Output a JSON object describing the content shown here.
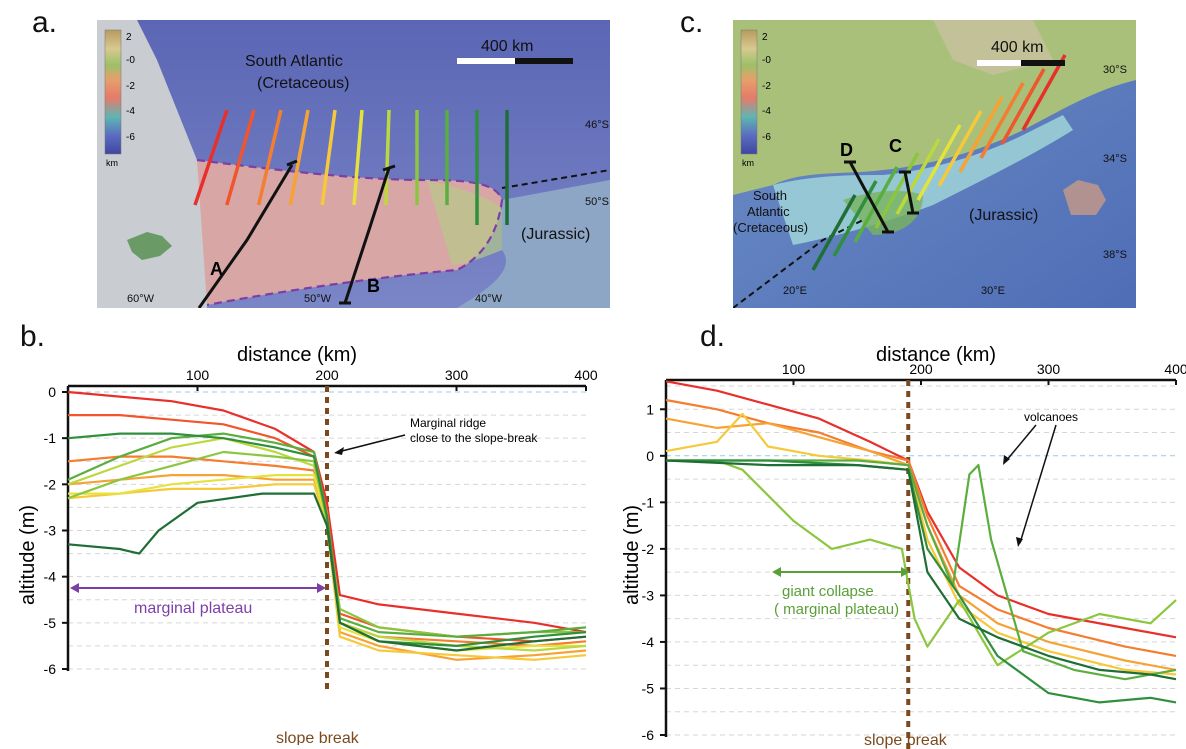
{
  "panels": {
    "a": {
      "letter": "a.",
      "ocean_label_line1": "South Atlantic",
      "ocean_label_line2": "(Cretaceous)",
      "jurassic_label": "(Jurassic)",
      "scale_label": "400 km",
      "lat_labels": [
        "46°S",
        "50°S"
      ],
      "lon_labels": [
        "60°W",
        "50°W",
        "40°W"
      ],
      "legend_ticks": [
        "2",
        "-0",
        "-2",
        "-4",
        "-6"
      ],
      "legend_unit": "km",
      "profile_labels": [
        "A",
        "B"
      ]
    },
    "b": {
      "letter": "b.",
      "x_title": "distance (km)",
      "y_title": "altitude (m)",
      "annotation_ridge_line1": "Marginal ridge",
      "annotation_ridge_line2": "close to the slope-break",
      "annotation_plateau": "marginal plateau",
      "annotation_slope": "slope break"
    },
    "c": {
      "letter": "c.",
      "ocean_label_line1": "South",
      "ocean_label_line2": "Atlantic",
      "ocean_label_line3": "(Cretaceous)",
      "jurassic_label": "(Jurassic)",
      "scale_label": "400 km",
      "lat_labels": [
        "30°S",
        "34°S",
        "38°S"
      ],
      "lon_labels": [
        "20°E",
        "30°E"
      ],
      "legend_ticks": [
        "2",
        "-0",
        "-2",
        "-4",
        "-6"
      ],
      "legend_unit": "km",
      "profile_labels": [
        "C",
        "D"
      ]
    },
    "d": {
      "letter": "d.",
      "x_title": "distance (km)",
      "y_title": "altitude (m)",
      "annotation_volcanoes": "volcanoes",
      "annotation_collapse_line1": "giant collapse",
      "annotation_collapse_line2": "( marginal plateau)",
      "annotation_slope": "slope break"
    }
  },
  "colors": {
    "profile_gradient": [
      "#e8302a",
      "#f0552b",
      "#f47d2f",
      "#f6a235",
      "#f6c83a",
      "#e5e23e",
      "#bcd83f",
      "#8cc63f",
      "#5aae3f",
      "#2f8f3d",
      "#1f6e36"
    ],
    "plateau_outline": "#7b3fa6",
    "slope_break": "#7a4a1e",
    "plateau_arrow": "#7b3fa6",
    "collapse_arrow": "#5aa03a"
  },
  "chart_data": [
    {
      "type": "line",
      "panel": "b",
      "title": "",
      "xlabel": "distance (km)",
      "ylabel": "altitude (m)",
      "xlim": [
        0,
        400
      ],
      "ylim": [
        -6,
        0
      ],
      "x_ticks": [
        100,
        200,
        300,
        400
      ],
      "y_ticks": [
        0,
        -1,
        -2,
        -3,
        -4,
        -5,
        -6
      ],
      "slope_break_x": 200,
      "series": [
        {
          "color": "#e8302a",
          "x": [
            0,
            40,
            80,
            120,
            160,
            190,
            200,
            210,
            240,
            300,
            360,
            400
          ],
          "y": [
            0,
            -0.1,
            -0.2,
            -0.4,
            -0.8,
            -1.3,
            -2.4,
            -4.4,
            -4.6,
            -4.8,
            -5.0,
            -5.2
          ]
        },
        {
          "color": "#f0552b",
          "x": [
            0,
            40,
            80,
            120,
            160,
            190,
            200,
            210,
            240,
            300,
            360,
            400
          ],
          "y": [
            -0.5,
            -0.5,
            -0.6,
            -0.7,
            -1.0,
            -1.4,
            -2.6,
            -4.8,
            -5.1,
            -5.3,
            -5.4,
            -5.3
          ]
        },
        {
          "color": "#f47d2f",
          "x": [
            0,
            40,
            80,
            120,
            160,
            190,
            200,
            210,
            240,
            300,
            360,
            400
          ],
          "y": [
            -1.5,
            -1.4,
            -1.4,
            -1.5,
            -1.6,
            -1.7,
            -2.6,
            -5.0,
            -5.3,
            -5.4,
            -5.5,
            -5.4
          ]
        },
        {
          "color": "#f6a235",
          "x": [
            0,
            40,
            80,
            120,
            160,
            190,
            200,
            210,
            240,
            300,
            360,
            400
          ],
          "y": [
            -2.0,
            -1.9,
            -1.8,
            -1.8,
            -1.9,
            -1.9,
            -2.8,
            -5.2,
            -5.5,
            -5.8,
            -5.7,
            -5.6
          ]
        },
        {
          "color": "#f6c83a",
          "x": [
            0,
            40,
            80,
            120,
            160,
            190,
            200,
            210,
            240,
            300,
            360,
            400
          ],
          "y": [
            -2.3,
            -2.2,
            -2.1,
            -2.1,
            -2.0,
            -2.0,
            -2.9,
            -5.3,
            -5.6,
            -5.7,
            -5.8,
            -5.7
          ]
        },
        {
          "color": "#e5e23e",
          "x": [
            0,
            40,
            80,
            120,
            160,
            190,
            200,
            210,
            240,
            300,
            360,
            400
          ],
          "y": [
            -2.2,
            -2.2,
            -2.0,
            -1.9,
            -1.8,
            -1.8,
            -2.8,
            -5.1,
            -5.4,
            -5.6,
            -5.5,
            -5.5
          ]
        },
        {
          "color": "#bcd83f",
          "x": [
            0,
            40,
            80,
            120,
            160,
            190,
            200,
            210,
            240,
            300,
            360,
            400
          ],
          "y": [
            -2.0,
            -1.6,
            -1.2,
            -1.0,
            -1.3,
            -1.6,
            -2.7,
            -5.0,
            -5.3,
            -5.5,
            -5.6,
            -5.5
          ]
        },
        {
          "color": "#8cc63f",
          "x": [
            0,
            40,
            80,
            120,
            160,
            190,
            200,
            210,
            240,
            300,
            360,
            400
          ],
          "y": [
            -2.3,
            -1.9,
            -1.6,
            -1.3,
            -1.4,
            -1.5,
            -2.8,
            -4.7,
            -5.1,
            -5.3,
            -5.2,
            -5.2
          ]
        },
        {
          "color": "#5aae3f",
          "x": [
            0,
            40,
            80,
            120,
            160,
            190,
            200,
            210,
            240,
            300,
            360,
            400
          ],
          "y": [
            -1.9,
            -1.4,
            -1.0,
            -0.9,
            -1.1,
            -1.3,
            -2.7,
            -4.9,
            -5.2,
            -5.3,
            -5.2,
            -5.1
          ]
        },
        {
          "color": "#2f8f3d",
          "x": [
            0,
            40,
            80,
            120,
            160,
            190,
            200,
            210,
            240,
            300,
            360,
            400
          ],
          "y": [
            -1.0,
            -0.9,
            -0.9,
            -1.0,
            -1.2,
            -1.4,
            -2.7,
            -5.0,
            -5.4,
            -5.5,
            -5.3,
            -5.2
          ]
        },
        {
          "color": "#1f6e36",
          "x": [
            0,
            40,
            55,
            70,
            100,
            150,
            190,
            200,
            210,
            240,
            300,
            360,
            400
          ],
          "y": [
            -3.3,
            -3.4,
            -3.5,
            -3.0,
            -2.4,
            -2.2,
            -2.2,
            -2.9,
            -5.0,
            -5.4,
            -5.6,
            -5.4,
            -5.3
          ]
        }
      ]
    },
    {
      "type": "line",
      "panel": "d",
      "title": "",
      "xlabel": "distance (km)",
      "ylabel": "altitude (m)",
      "xlim": [
        0,
        400
      ],
      "ylim": [
        -6,
        1.5
      ],
      "x_ticks": [
        100,
        200,
        300,
        400
      ],
      "y_ticks": [
        1,
        0,
        -1,
        -2,
        -3,
        -4,
        -5,
        -6
      ],
      "slope_break_x": 190,
      "series": [
        {
          "color": "#e8302a",
          "x": [
            0,
            40,
            80,
            120,
            160,
            190,
            205,
            230,
            260,
            300,
            360,
            400
          ],
          "y": [
            1.6,
            1.4,
            1.1,
            0.8,
            0.3,
            -0.1,
            -1.2,
            -2.4,
            -3.0,
            -3.4,
            -3.7,
            -3.9
          ]
        },
        {
          "color": "#f47d2f",
          "x": [
            0,
            40,
            80,
            120,
            160,
            190,
            205,
            230,
            260,
            300,
            360,
            400
          ],
          "y": [
            1.2,
            1.0,
            0.7,
            0.5,
            0.1,
            -0.1,
            -1.3,
            -2.8,
            -3.3,
            -3.7,
            -4.1,
            -4.3
          ]
        },
        {
          "color": "#f6a235",
          "x": [
            0,
            40,
            80,
            120,
            160,
            190,
            205,
            230,
            260,
            300,
            360,
            400
          ],
          "y": [
            0.8,
            0.6,
            0.7,
            0.4,
            0.1,
            -0.2,
            -1.5,
            -3.0,
            -3.6,
            -4.0,
            -4.4,
            -4.6
          ]
        },
        {
          "color": "#f6c83a",
          "x": [
            0,
            40,
            60,
            80,
            120,
            160,
            190,
            205,
            230,
            260,
            300,
            360,
            400
          ],
          "y": [
            0.1,
            0.3,
            0.9,
            0.2,
            0.0,
            -0.1,
            -0.2,
            -1.8,
            -3.2,
            -3.8,
            -4.2,
            -4.6,
            -4.7
          ]
        },
        {
          "color": "#8cc63f",
          "x": [
            0,
            40,
            60,
            100,
            130,
            160,
            185,
            195,
            205,
            230,
            260,
            300,
            340,
            380,
            400
          ],
          "y": [
            -0.1,
            -0.1,
            -0.3,
            -1.4,
            -2.0,
            -1.8,
            -2.0,
            -3.5,
            -4.1,
            -3.1,
            -4.5,
            -3.8,
            -3.4,
            -3.6,
            -3.1
          ]
        },
        {
          "color": "#5aae3f",
          "x": [
            0,
            80,
            150,
            190,
            205,
            225,
            238,
            245,
            255,
            280,
            320,
            360,
            400
          ],
          "y": [
            -0.1,
            -0.1,
            -0.1,
            -0.2,
            -1.5,
            -2.8,
            -0.4,
            -0.2,
            -1.8,
            -4.2,
            -4.6,
            -4.8,
            -4.6
          ]
        },
        {
          "color": "#2f8f3d",
          "x": [
            0,
            80,
            150,
            190,
            205,
            230,
            260,
            300,
            340,
            380,
            400
          ],
          "y": [
            -0.1,
            -0.1,
            -0.2,
            -0.3,
            -2.0,
            -3.0,
            -4.3,
            -5.1,
            -5.3,
            -5.2,
            -5.3
          ]
        },
        {
          "color": "#1f6e36",
          "x": [
            0,
            80,
            150,
            190,
            205,
            230,
            260,
            300,
            340,
            380,
            400
          ],
          "y": [
            -0.1,
            -0.2,
            -0.2,
            -0.3,
            -2.5,
            -3.5,
            -3.9,
            -4.3,
            -4.6,
            -4.7,
            -4.8
          ]
        }
      ]
    }
  ]
}
